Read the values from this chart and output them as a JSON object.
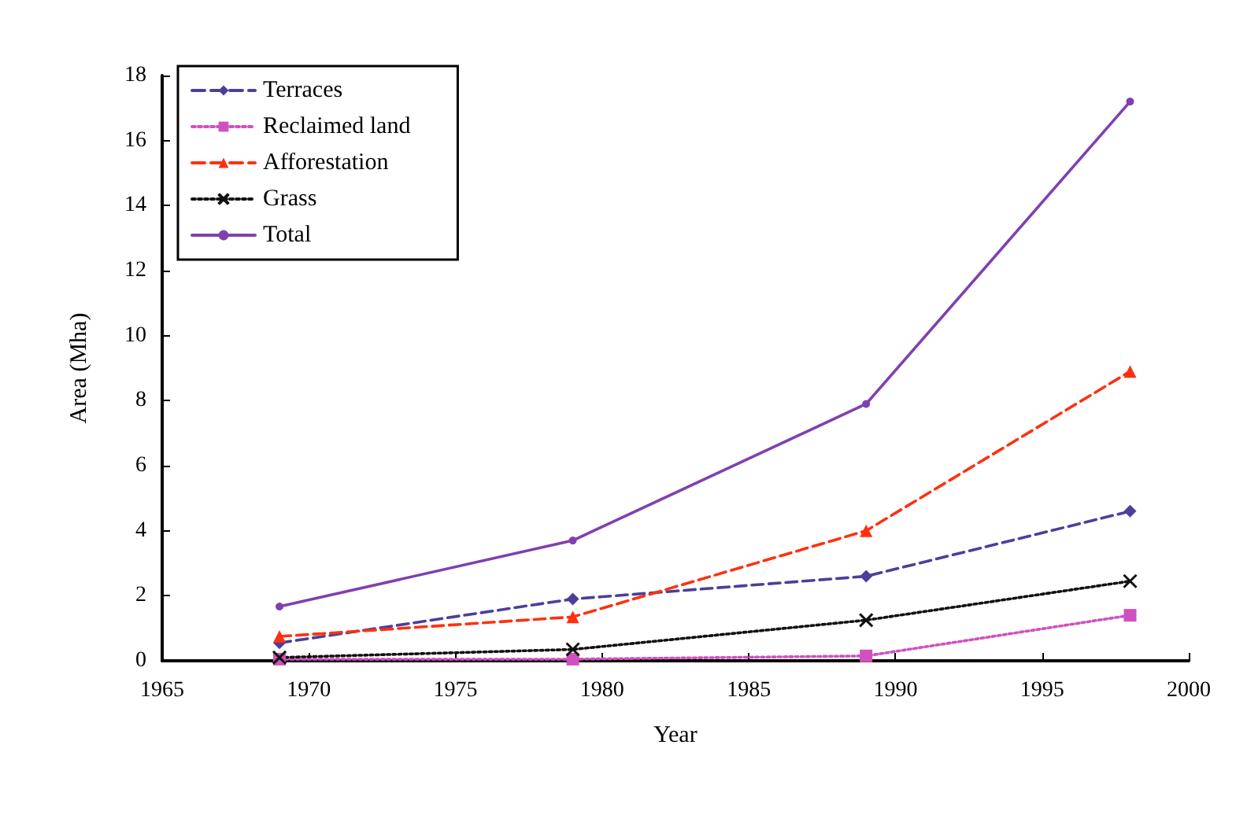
{
  "chart_data": {
    "type": "line",
    "xlabel": "Year",
    "ylabel": "Area (Mha)",
    "x": [
      1969,
      1979,
      1989,
      1998
    ],
    "xlim": [
      1965,
      2000
    ],
    "xticks": [
      1965,
      1970,
      1975,
      1980,
      1985,
      1990,
      1995,
      2000
    ],
    "ylim": [
      0,
      18
    ],
    "yticks": [
      0,
      2,
      4,
      6,
      8,
      10,
      12,
      14,
      16,
      18
    ],
    "grid": false,
    "legend": "top left",
    "series": [
      {
        "name": "Terraces",
        "color": "#4b3f9a",
        "values": [
          0.55,
          1.9,
          2.6,
          4.6
        ],
        "marker": "diamond",
        "line_style": "dashed"
      },
      {
        "name": "Reclaimed land",
        "color": "#d050c0",
        "values": [
          0.05,
          0.05,
          0.15,
          1.4
        ],
        "marker": "square",
        "line_style": "dotted"
      },
      {
        "name": "Afforestation",
        "color": "#ff3010",
        "values": [
          0.75,
          1.35,
          4.0,
          8.9
        ],
        "marker": "triangle",
        "line_style": "dashed"
      },
      {
        "name": "Grass",
        "color": "#111111",
        "values": [
          0.1,
          0.35,
          1.25,
          2.45
        ],
        "marker": "cross",
        "line_style": "dotted"
      },
      {
        "name": "Total",
        "color": "#8040b0",
        "values": [
          1.67,
          3.7,
          7.9,
          17.2
        ],
        "marker": "circle",
        "line_style": "solid"
      }
    ]
  }
}
